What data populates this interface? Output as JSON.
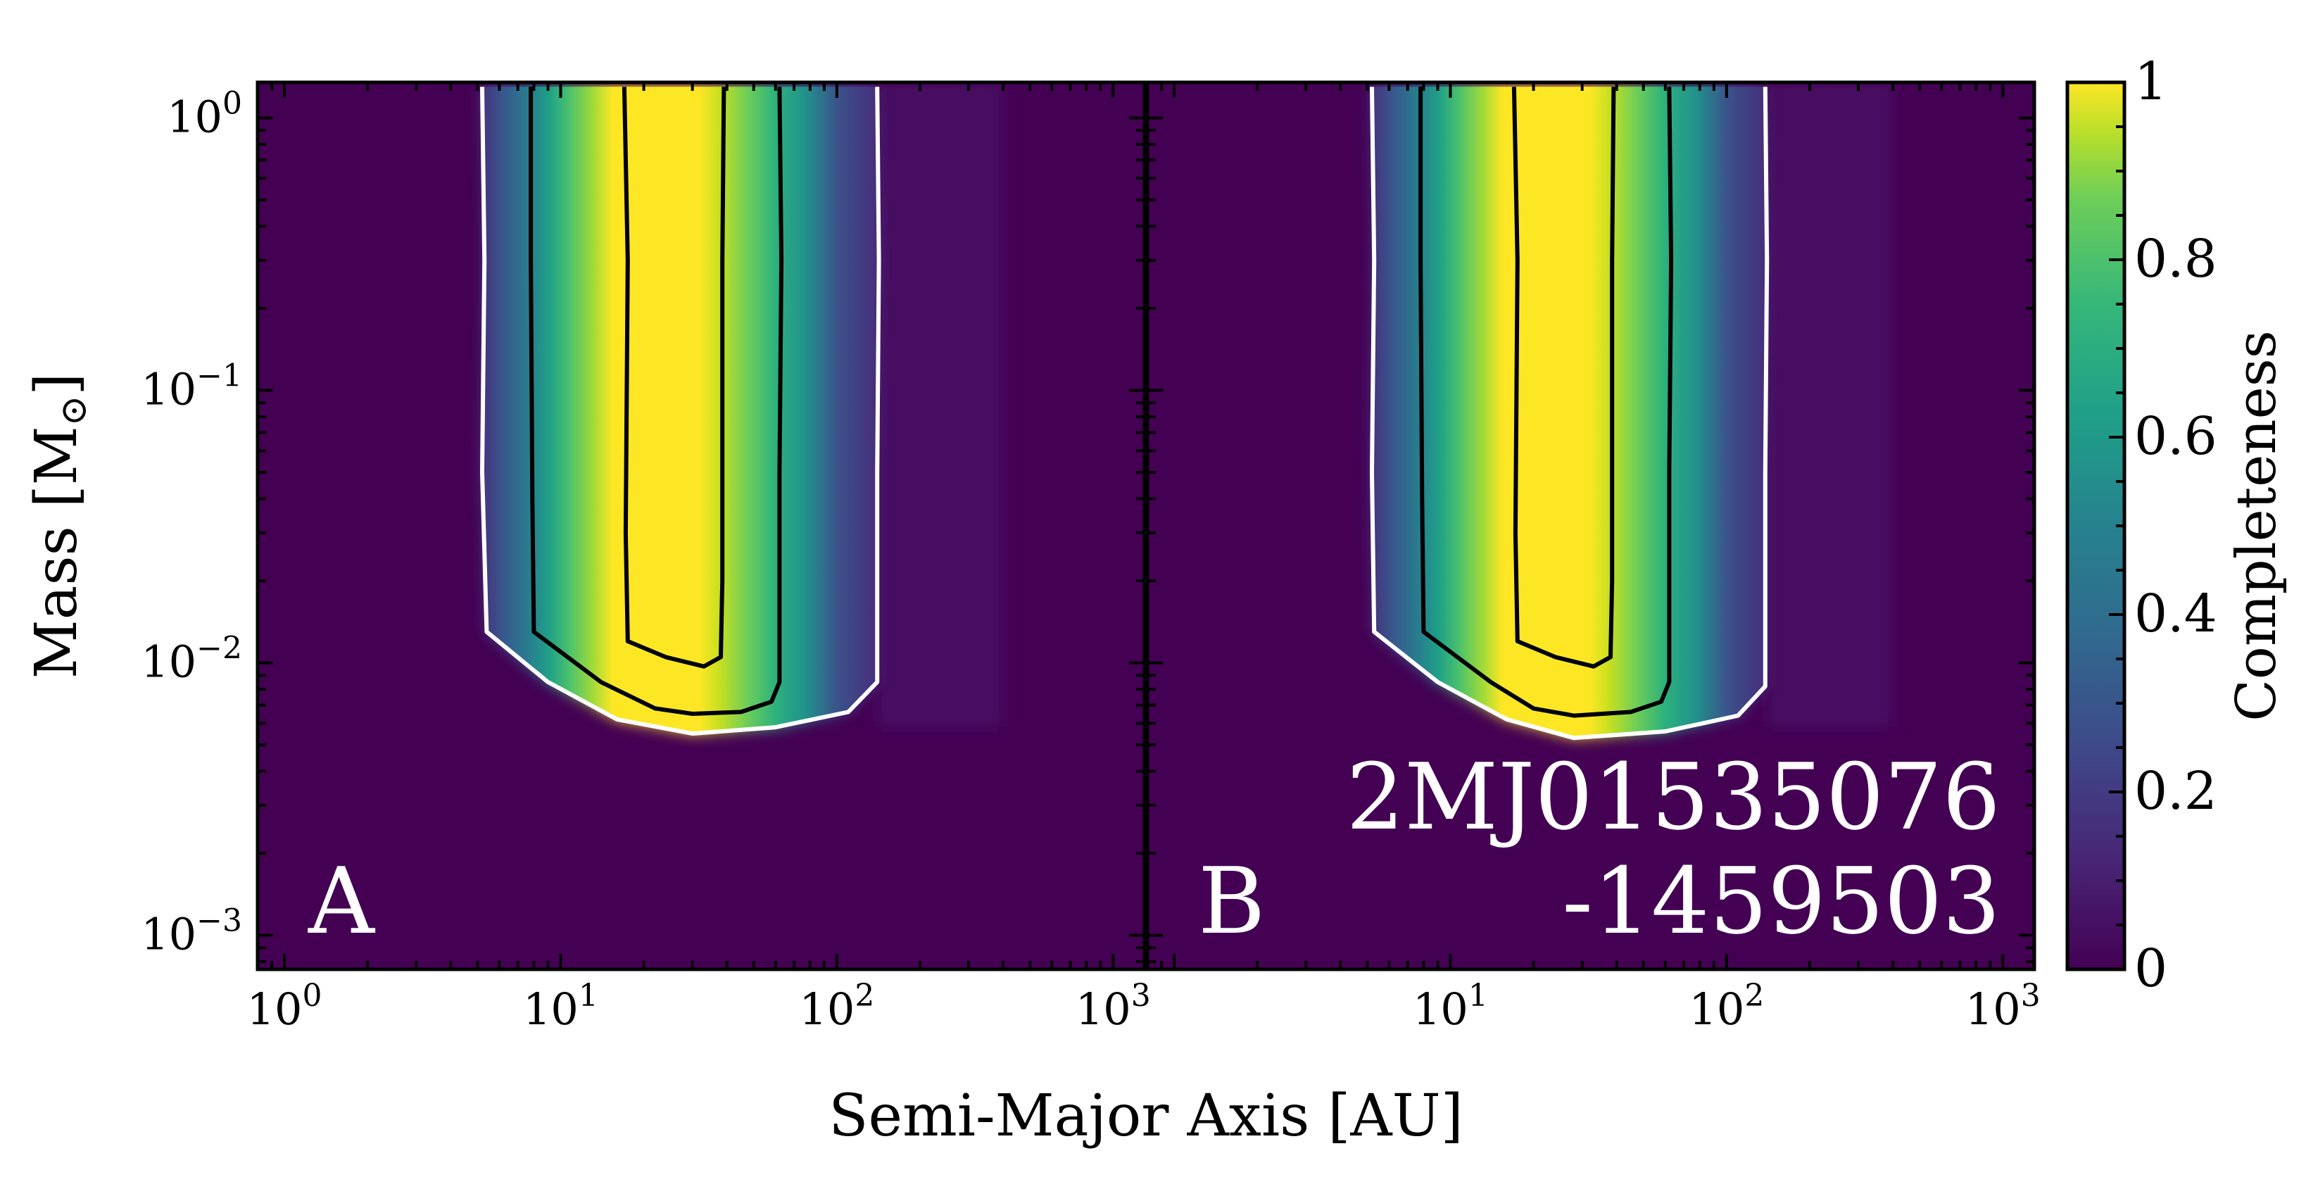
{
  "chart_data": {
    "type": "heatmap",
    "x_scale": "log",
    "y_scale": "log",
    "xlim": [
      0.8,
      1300
    ],
    "ylim": [
      0.00075,
      1.35
    ],
    "xlabel": "Semi-Major Axis [AU]",
    "ylabel_main": "Mass [M",
    "ylabel_sub": "⊙",
    "ylabel_end": "]",
    "colorbar": {
      "label": "Completeness",
      "range": [
        0,
        1
      ],
      "ticks": [
        {
          "value": 0,
          "label": "0"
        },
        {
          "value": 0.2,
          "label": "0.2"
        },
        {
          "value": 0.4,
          "label": "0.4"
        },
        {
          "value": 0.6,
          "label": "0.6"
        },
        {
          "value": 0.8,
          "label": "0.8"
        },
        {
          "value": 1,
          "label": "1"
        }
      ]
    },
    "x_ticks": [
      {
        "value": 1,
        "base": "10",
        "exp": "0"
      },
      {
        "value": 10,
        "base": "10",
        "exp": "1"
      },
      {
        "value": 100,
        "base": "10",
        "exp": "2"
      },
      {
        "value": 1000,
        "base": "10",
        "exp": "3"
      }
    ],
    "y_ticks": [
      {
        "value": 1,
        "base": "10",
        "exp": "0"
      },
      {
        "value": 0.1,
        "base": "10",
        "exp": "−1"
      },
      {
        "value": 0.01,
        "base": "10",
        "exp": "−2"
      },
      {
        "value": 0.001,
        "base": "10",
        "exp": "−3"
      }
    ],
    "panels": [
      {
        "label": "A",
        "target_line1": "",
        "target_line2": "",
        "contours": [
          {
            "level": "outer",
            "color": "white",
            "points": [
              [
                5.2,
                1.3
              ],
              [
                5.3,
                0.3
              ],
              [
                5.2,
                0.05
              ],
              [
                5.4,
                0.013
              ],
              [
                9,
                0.0085
              ],
              [
                16,
                0.0062
              ],
              [
                30,
                0.0055
              ],
              [
                60,
                0.0058
              ],
              [
                110,
                0.0066
              ],
              [
                140,
                0.0085
              ],
              [
                140,
                0.05
              ],
              [
                142,
                0.3
              ],
              [
                140,
                1.3
              ]
            ]
          },
          {
            "level": "mid",
            "color": "black",
            "points": [
              [
                7.8,
                1.3
              ],
              [
                7.8,
                0.3
              ],
              [
                7.9,
                0.04
              ],
              [
                8,
                0.013
              ],
              [
                14,
                0.0085
              ],
              [
                22,
                0.0068
              ],
              [
                30,
                0.0065
              ],
              [
                45,
                0.0066
              ],
              [
                58,
                0.0072
              ],
              [
                62,
                0.0085
              ],
              [
                62,
                0.05
              ],
              [
                63,
                0.3
              ],
              [
                62,
                1.3
              ]
            ]
          },
          {
            "level": "inner",
            "color": "black",
            "points": [
              [
                17,
                1.3
              ],
              [
                17.5,
                0.3
              ],
              [
                17.2,
                0.03
              ],
              [
                17.5,
                0.012
              ],
              [
                24,
                0.0105
              ],
              [
                33,
                0.0097
              ],
              [
                38,
                0.0105
              ],
              [
                38.5,
                0.02
              ],
              [
                38.5,
                0.3
              ],
              [
                39,
                1.3
              ]
            ]
          }
        ]
      },
      {
        "label": "B",
        "target_line1": "2MJ01535076",
        "target_line2": "-1459503",
        "contours": [
          {
            "level": "outer",
            "color": "white",
            "points": [
              [
                5.2,
                1.3
              ],
              [
                5.3,
                0.3
              ],
              [
                5.2,
                0.05
              ],
              [
                5.3,
                0.013
              ],
              [
                9,
                0.0085
              ],
              [
                16,
                0.0062
              ],
              [
                28,
                0.0053
              ],
              [
                60,
                0.0056
              ],
              [
                110,
                0.0064
              ],
              [
                138,
                0.0082
              ],
              [
                138,
                0.05
              ],
              [
                140,
                0.3
              ],
              [
                138,
                1.3
              ]
            ]
          },
          {
            "level": "mid",
            "color": "black",
            "points": [
              [
                7.8,
                1.3
              ],
              [
                7.8,
                0.3
              ],
              [
                7.9,
                0.04
              ],
              [
                8,
                0.013
              ],
              [
                14,
                0.0085
              ],
              [
                20,
                0.0068
              ],
              [
                28,
                0.0064
              ],
              [
                45,
                0.0066
              ],
              [
                58,
                0.0072
              ],
              [
                62,
                0.0085
              ],
              [
                62,
                0.05
              ],
              [
                63,
                0.3
              ],
              [
                62,
                1.3
              ]
            ]
          },
          {
            "level": "inner",
            "color": "black",
            "points": [
              [
                17,
                1.3
              ],
              [
                17.5,
                0.3
              ],
              [
                17.2,
                0.03
              ],
              [
                17.5,
                0.012
              ],
              [
                24,
                0.0105
              ],
              [
                33,
                0.0097
              ],
              [
                38,
                0.0105
              ],
              [
                38.5,
                0.02
              ],
              [
                38.5,
                0.3
              ],
              [
                39,
                1.3
              ]
            ]
          }
        ]
      }
    ]
  }
}
